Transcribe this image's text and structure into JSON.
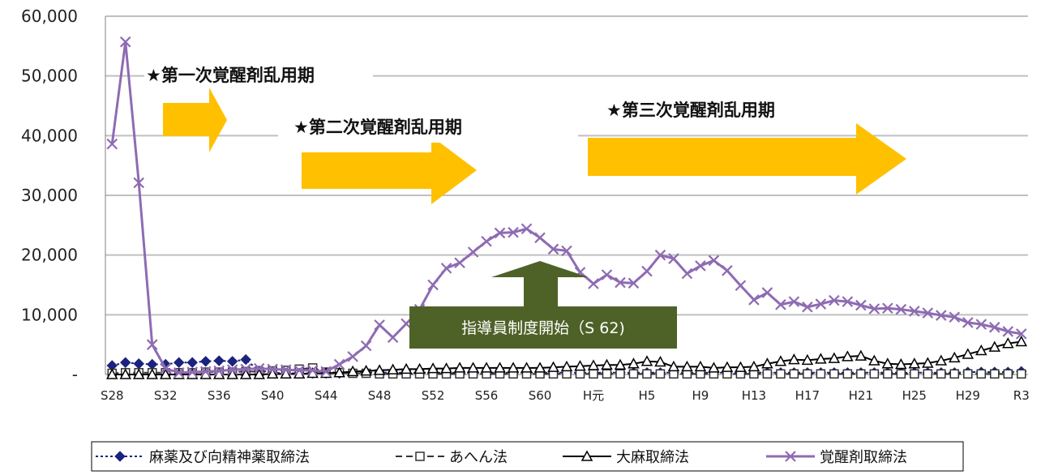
{
  "chart_data": {
    "type": "line",
    "title": "",
    "xlabel": "",
    "ylabel": "",
    "ylim": [
      0,
      60000
    ],
    "yticks": [
      "-",
      "10,000",
      "20,000",
      "30,000",
      "40,000",
      "50,000",
      "60,000"
    ],
    "grid": true,
    "legend_position": "bottom",
    "x": [
      "S28",
      "S29",
      "S30",
      "S31",
      "S32",
      "S33",
      "S34",
      "S35",
      "S36",
      "S37",
      "S38",
      "S39",
      "S40",
      "S41",
      "S42",
      "S43",
      "S44",
      "S45",
      "S46",
      "S47",
      "S48",
      "S49",
      "S50",
      "S51",
      "S52",
      "S53",
      "S54",
      "S55",
      "S56",
      "S57",
      "S58",
      "S59",
      "S60",
      "S61",
      "S62",
      "S63",
      "H元",
      "H2",
      "H3",
      "H4",
      "H5",
      "H6",
      "H7",
      "H8",
      "H9",
      "H10",
      "H11",
      "H12",
      "H13",
      "H14",
      "H15",
      "H16",
      "H17",
      "H18",
      "H19",
      "H20",
      "H21",
      "H22",
      "H23",
      "H24",
      "H25",
      "H26",
      "H27",
      "H28",
      "H29",
      "H30",
      "R1",
      "R2",
      "R3"
    ],
    "xticks_shown": [
      "S28",
      "S32",
      "S36",
      "S40",
      "S44",
      "S48",
      "S52",
      "S56",
      "S60",
      "H元",
      "H5",
      "H9",
      "H13",
      "H17",
      "H21",
      "H25",
      "H29",
      "R3"
    ],
    "series": [
      {
        "name": "麻薬及び向精神薬取締法",
        "color": "#1a237e",
        "marker": "diamond",
        "dash": "dotted",
        "values": [
          1500,
          2000,
          1800,
          1700,
          1700,
          2000,
          2000,
          2200,
          2300,
          2200,
          2500,
          600,
          300,
          200,
          200,
          200,
          200,
          200,
          300,
          300,
          300,
          300,
          300,
          300,
          300,
          300,
          300,
          300,
          300,
          300,
          300,
          300,
          300,
          300,
          300,
          300,
          300,
          300,
          300,
          300,
          300,
          300,
          300,
          300,
          300,
          300,
          300,
          300,
          300,
          300,
          300,
          300,
          300,
          300,
          300,
          300,
          300,
          300,
          300,
          300,
          300,
          300,
          300,
          300,
          400,
          400,
          400,
          400,
          500
        ]
      },
      {
        "name": "あへん法",
        "color": "#333333",
        "marker": "square",
        "dash": "dashed",
        "values": [
          200,
          300,
          300,
          300,
          300,
          300,
          300,
          400,
          400,
          400,
          500,
          500,
          600,
          700,
          900,
          1100,
          400,
          300,
          200,
          200,
          100,
          100,
          100,
          100,
          100,
          100,
          100,
          100,
          100,
          100,
          100,
          100,
          100,
          100,
          100,
          100,
          100,
          100,
          100,
          100,
          100,
          100,
          100,
          100,
          100,
          100,
          100,
          100,
          100,
          100,
          100,
          100,
          100,
          100,
          100,
          100,
          100,
          100,
          100,
          100,
          100,
          100,
          100,
          100,
          100,
          100,
          100,
          100,
          100
        ]
      },
      {
        "name": "大麻取締法",
        "color": "#000000",
        "marker": "triangle",
        "dash": "solid",
        "values": [
          0,
          0,
          0,
          0,
          0,
          0,
          0,
          0,
          0,
          0,
          0,
          0,
          100,
          100,
          100,
          200,
          200,
          300,
          500,
          600,
          700,
          800,
          900,
          900,
          1000,
          1000,
          1100,
          1100,
          1100,
          1100,
          1100,
          1100,
          1100,
          1200,
          1300,
          1400,
          1500,
          1600,
          1600,
          1800,
          2200,
          2100,
          1300,
          1300,
          1300,
          1100,
          1200,
          1200,
          1300,
          1800,
          2200,
          2500,
          2400,
          2600,
          2700,
          3000,
          3100,
          2300,
          1800,
          1700,
          1800,
          1900,
          2300,
          2800,
          3400,
          4000,
          4600,
          5200,
          5500
        ]
      },
      {
        "name": "覚醒剤取締法",
        "color": "#8e6bb3",
        "marker": "x",
        "dash": "solid",
        "values": [
          38600,
          55700,
          32100,
          5000,
          1000,
          300,
          400,
          500,
          600,
          800,
          900,
          1000,
          900,
          800,
          700,
          700,
          500,
          1700,
          3000,
          4800,
          8300,
          6200,
          8500,
          10900,
          15000,
          17800,
          18700,
          20500,
          22300,
          23700,
          23800,
          24400,
          22900,
          21000,
          20700,
          17100,
          15200,
          16700,
          15400,
          15300,
          17300,
          20000,
          19400,
          16900,
          18200,
          19100,
          17400,
          14900,
          12500,
          13700,
          11700,
          12200,
          11300,
          11800,
          12400,
          12200,
          11600,
          11000,
          11100,
          10900,
          10600,
          10300,
          9900,
          9600,
          8700,
          8400,
          7900,
          7200,
          6800
        ]
      }
    ],
    "annotations": {
      "period1": "★第一次覚醒剤乱用期",
      "period2": "★第二次覚醒剤乱用期",
      "period3": "★第三次覚醒剤乱用期",
      "box": "指導員制度開始（S 62)"
    },
    "colors": {
      "arrow_orange": "#ffc000",
      "arrow_green": "#4e6228",
      "grid": "#c0c0c0"
    }
  }
}
